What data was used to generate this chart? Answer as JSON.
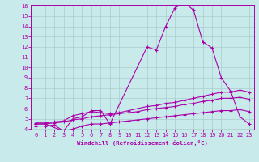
{
  "xlabel": "Windchill (Refroidissement éolien,°C)",
  "background_color": "#c8eaea",
  "grid_color": "#aacccc",
  "line_color": "#aa00aa",
  "ylim": [
    4,
    16
  ],
  "xlim": [
    -0.5,
    23.5
  ],
  "yticks": [
    4,
    5,
    6,
    7,
    8,
    9,
    10,
    11,
    12,
    13,
    14,
    15,
    16
  ],
  "xticks": [
    0,
    1,
    2,
    3,
    4,
    5,
    6,
    7,
    8,
    9,
    10,
    11,
    12,
    13,
    14,
    15,
    16,
    17,
    18,
    19,
    20,
    21,
    22,
    23
  ],
  "line1_x": [
    0,
    1,
    3,
    4,
    5,
    6,
    7,
    8,
    12,
    13,
    14,
    15,
    16,
    17,
    18,
    19,
    20,
    21,
    22,
    23
  ],
  "line1_y": [
    4.5,
    4.5,
    3.8,
    5.0,
    5.2,
    5.8,
    5.8,
    4.5,
    12.0,
    11.7,
    14.0,
    15.8,
    16.3,
    15.6,
    12.5,
    11.9,
    9.0,
    7.7,
    5.2,
    4.5
  ],
  "line2_x": [
    0,
    1,
    2,
    3,
    4,
    5,
    6,
    7,
    8,
    9,
    10,
    11,
    12,
    13,
    14,
    15,
    16,
    17,
    18,
    19,
    20,
    21,
    22,
    23
  ],
  "line2_y": [
    4.6,
    4.6,
    4.7,
    4.8,
    5.3,
    5.5,
    5.7,
    5.6,
    5.5,
    5.6,
    5.8,
    6.0,
    6.2,
    6.3,
    6.5,
    6.6,
    6.8,
    7.0,
    7.2,
    7.4,
    7.6,
    7.6,
    7.8,
    7.6
  ],
  "line3_x": [
    0,
    1,
    2,
    3,
    4,
    5,
    6,
    7,
    8,
    9,
    10,
    11,
    12,
    13,
    14,
    15,
    16,
    17,
    18,
    19,
    20,
    21,
    22,
    23
  ],
  "line3_y": [
    4.5,
    4.5,
    4.6,
    4.7,
    4.9,
    5.0,
    5.2,
    5.3,
    5.4,
    5.5,
    5.6,
    5.7,
    5.9,
    6.0,
    6.1,
    6.2,
    6.4,
    6.5,
    6.7,
    6.8,
    7.0,
    7.0,
    7.1,
    6.9
  ],
  "line4_x": [
    0,
    1,
    2,
    3,
    4,
    5,
    6,
    7,
    8,
    9,
    10,
    11,
    12,
    13,
    14,
    15,
    16,
    17,
    18,
    19,
    20,
    21,
    22,
    23
  ],
  "line4_y": [
    4.3,
    4.3,
    4.4,
    3.8,
    4.0,
    4.3,
    4.5,
    4.5,
    4.6,
    4.7,
    4.8,
    4.9,
    5.0,
    5.1,
    5.2,
    5.3,
    5.4,
    5.5,
    5.6,
    5.7,
    5.8,
    5.8,
    5.9,
    5.7
  ]
}
